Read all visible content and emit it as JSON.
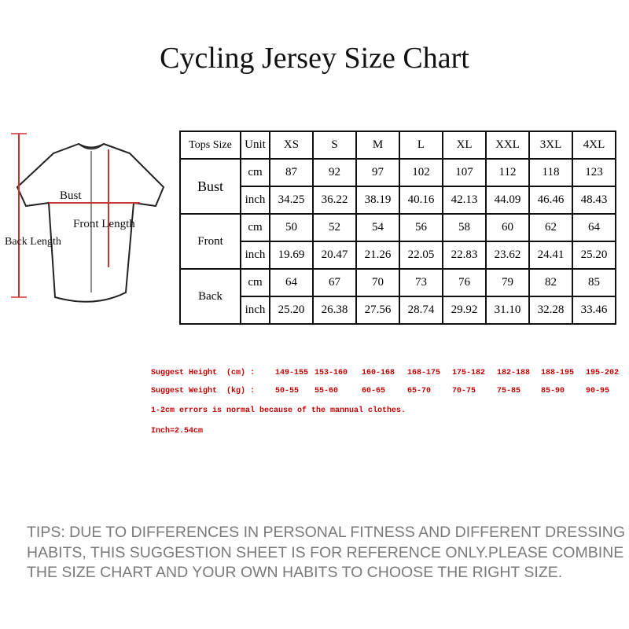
{
  "title": "Cycling Jersey Size Chart",
  "diagram": {
    "bust": "Bust",
    "front_length": "Front Length",
    "back_length": "Back Length"
  },
  "table": {
    "header": [
      "Tops Size",
      "Unit",
      "XS",
      "S",
      "M",
      "L",
      "XL",
      "XXL",
      "3XL",
      "4XL"
    ],
    "groups": [
      {
        "name": "Bust",
        "rows": [
          {
            "unit": "cm",
            "values": [
              "87",
              "92",
              "97",
              "102",
              "107",
              "112",
              "118",
              "123"
            ]
          },
          {
            "unit": "inch",
            "values": [
              "34.25",
              "36.22",
              "38.19",
              "40.16",
              "42.13",
              "44.09",
              "46.46",
              "48.43"
            ]
          }
        ]
      },
      {
        "name": "Front",
        "rows": [
          {
            "unit": "cm",
            "values": [
              "50",
              "52",
              "54",
              "56",
              "58",
              "60",
              "62",
              "64"
            ]
          },
          {
            "unit": "inch",
            "values": [
              "19.69",
              "20.47",
              "21.26",
              "22.05",
              "22.83",
              "23.62",
              "24.41",
              "25.20"
            ]
          }
        ]
      },
      {
        "name": "Back",
        "rows": [
          {
            "unit": "cm",
            "values": [
              "64",
              "67",
              "70",
              "73",
              "76",
              "79",
              "82",
              "85"
            ]
          },
          {
            "unit": "inch",
            "values": [
              "25.20",
              "26.38",
              "27.56",
              "28.74",
              "29.92",
              "31.10",
              "32.28",
              "33.46"
            ]
          }
        ]
      }
    ]
  },
  "suggest": {
    "height": {
      "label": "Suggest Height  (cm) :",
      "values": [
        "149-155",
        "153-160",
        "160-168",
        "168-175",
        "175-182",
        "182-188",
        "188-195",
        "195-202"
      ]
    },
    "weight": {
      "label": "Suggest Weight  (kg) :",
      "values": [
        "50-55",
        "55-60",
        "60-65",
        "65-70",
        "70-75",
        "75-85",
        "85-90",
        "90-95"
      ]
    },
    "notes": [
      "1-2cm errors is normal because of the mannual clothes.",
      "Inch=2.54cm"
    ]
  },
  "tips": [
    "TIPS: DUE TO DIFFERENCES IN PERSONAL FITNESS AND DIFFERENT DRESSING",
    "HABITS, THIS SUGGESTION SHEET IS FOR REFERENCE ONLY.PLEASE COMBINE",
    "THE SIZE CHART AND YOUR OWN HABITS TO CHOOSE THE RIGHT SIZE."
  ]
}
